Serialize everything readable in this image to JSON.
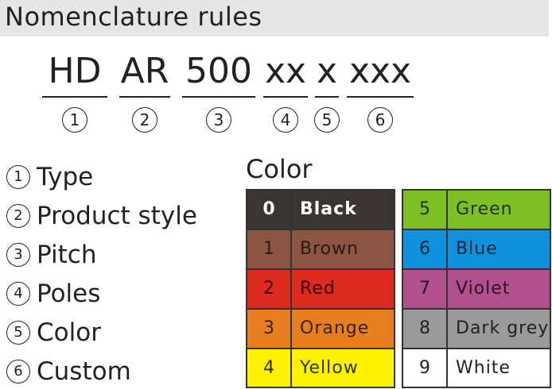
{
  "title": "Nomenclature rules",
  "code": [
    {
      "seg": "HD",
      "n": "1"
    },
    {
      "seg": "AR",
      "n": "2"
    },
    {
      "seg": "500",
      "n": "3"
    },
    {
      "seg": "xx",
      "n": "4"
    },
    {
      "seg": "x",
      "n": "5"
    },
    {
      "seg": "xxx",
      "n": "6"
    }
  ],
  "legend": [
    {
      "n": "1",
      "label": "Type"
    },
    {
      "n": "2",
      "label": "Product style"
    },
    {
      "n": "3",
      "label": "Pitch"
    },
    {
      "n": "4",
      "label": "Poles"
    },
    {
      "n": "5",
      "label": "Color"
    },
    {
      "n": "6",
      "label": "Custom"
    }
  ],
  "color_title": "Color",
  "colors_left": [
    {
      "num": "0",
      "name": "Black",
      "bg": "#3a3533",
      "fg": "#ffffff"
    },
    {
      "num": "1",
      "name": "Brown",
      "bg": "#8c5443",
      "fg": "#2a1a14"
    },
    {
      "num": "2",
      "name": "Red",
      "bg": "#dd2a1e",
      "fg": "#3a0d08"
    },
    {
      "num": "3",
      "name": "Orange",
      "bg": "#e67d1f",
      "fg": "#3a2008"
    },
    {
      "num": "4",
      "name": "Yellow",
      "bg": "#fff200",
      "fg": "#333300"
    }
  ],
  "colors_right": [
    {
      "num": "5",
      "name": "Green",
      "bg": "#7fbf26",
      "fg": "#1f330a"
    },
    {
      "num": "6",
      "name": "Blue",
      "bg": "#0f92dc",
      "fg": "#0a2238"
    },
    {
      "num": "7",
      "name": "Violet",
      "bg": "#b2508e",
      "fg": "#2e1024"
    },
    {
      "num": "8",
      "name": "Dark grey",
      "bg": "#9a9a9a",
      "fg": "#222222"
    },
    {
      "num": "9",
      "name": "White",
      "bg": "#ffffff",
      "fg": "#222222"
    }
  ]
}
